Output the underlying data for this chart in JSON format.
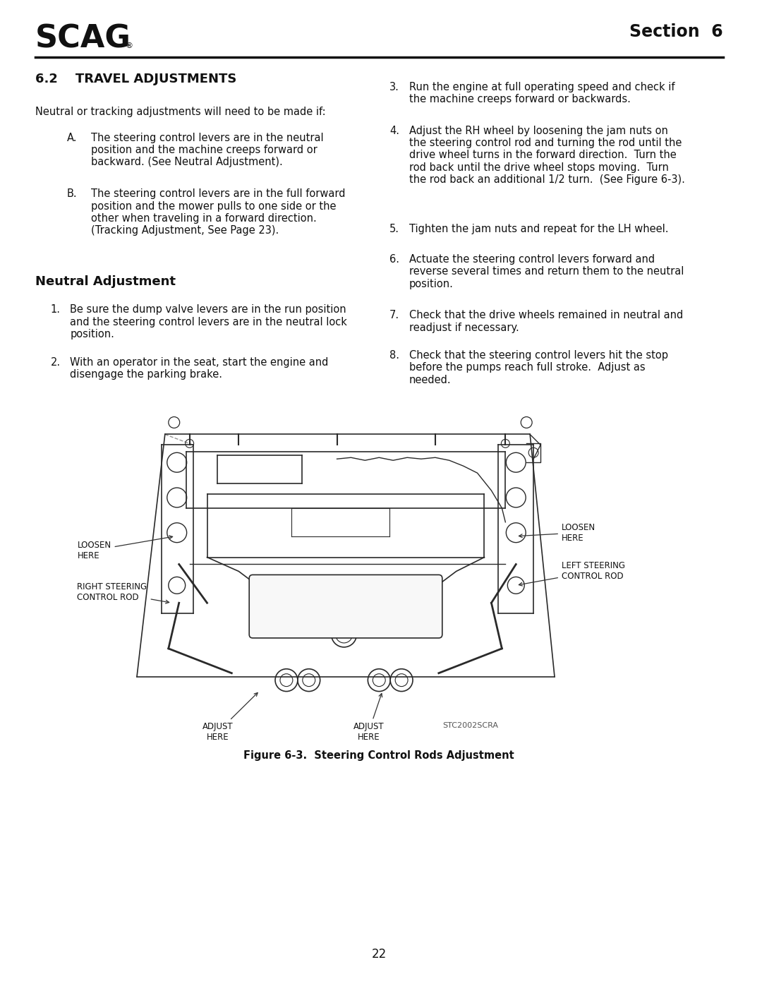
{
  "page_width": 10.8,
  "page_height": 13.97,
  "bg_color": "#ffffff",
  "text_color": "#1a1a1a",
  "logo_text": "SCAG",
  "section_text": "Section  6",
  "title_62": "6.2    TRAVEL ADJUSTMENTS",
  "intro_text": "Neutral or tracking adjustments will need to be made if:",
  "bullet_a_title": "A.",
  "bullet_a_text": "The steering control levers are in the neutral\nposition and the machine creeps forward or\nbackward. (See Neutral Adjustment).",
  "bullet_b_title": "B.",
  "bullet_b_text": "The steering control levers are in the full forward\nposition and the mower pulls to one side or the\nother when traveling in a forward direction.\n(Tracking Adjustment, See Page 23).",
  "neutral_adj_title": "Neutral Adjustment",
  "steps_left": [
    {
      "num": "1.",
      "text": "Be sure the dump valve levers are in the run position\nand the steering control levers are in the neutral lock\nposition."
    },
    {
      "num": "2.",
      "text": "With an operator in the seat, start the engine and\ndisengage the parking brake."
    }
  ],
  "steps_right": [
    {
      "num": "3.",
      "text": "Run the engine at full operating speed and check if\nthe machine creeps forward or backwards."
    },
    {
      "num": "4.",
      "text": "Adjust the RH wheel by loosening the jam nuts on\nthe steering control rod and turning the rod until the\ndrive wheel turns in the forward direction.  Turn the\nrod back until the drive wheel stops moving.  Turn\nthe rod back an additional 1/2 turn.  (See Figure 6-3)."
    },
    {
      "num": "5.",
      "text": "Tighten the jam nuts and repeat for the LH wheel."
    },
    {
      "num": "6.",
      "text": "Actuate the steering control levers forward and\nreverse several times and return them to the neutral\nposition."
    },
    {
      "num": "7.",
      "text": "Check that the drive wheels remained in neutral and\nreadjust if necessary."
    },
    {
      "num": "8.",
      "text": "Check that the steering control levers hit the stop\nbefore the pumps reach full stroke.  Adjust as\nneeded."
    }
  ],
  "figure_caption": "Figure 6-3.  Steering Control Rods Adjustment",
  "page_number": "22",
  "ann_right_rod": "RIGHT STEERING\nCONTROL ROD",
  "ann_loosen_left": "LOOSEN\nHERE",
  "ann_left_rod": "LEFT STEERING\nCONTROL ROD",
  "ann_loosen_right": "LOOSEN\nHERE",
  "ann_adjust_left": "ADJUST\nHERE",
  "ann_adjust_right": "ADJUST\nHERE",
  "ann_stc": "STC2002SCRA"
}
